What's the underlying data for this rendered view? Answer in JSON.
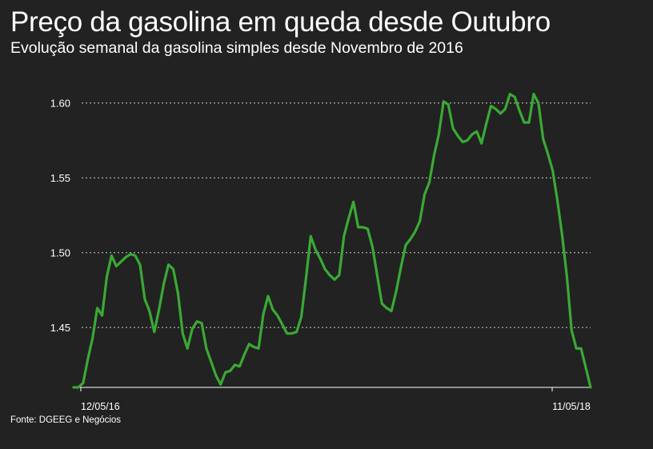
{
  "header": {
    "title": "Preço da gasolina em queda desde Outubro",
    "subtitle": "Evolução semanal da gasolina simples desde Novembro de 2016"
  },
  "footer": {
    "source": "Fonte: DGEEG e Negócios"
  },
  "colors": {
    "background": "#222222",
    "line": "#3aa935",
    "text": "#ffffff",
    "grid": "#bbbbbb"
  },
  "chart_data": {
    "type": "line",
    "title": "Preço da gasolina em queda desde Outubro",
    "subtitle": "Evolução semanal da gasolina simples desde Novembro de 2016",
    "xlabel": "",
    "ylabel": "",
    "ylim": [
      1.41,
      1.61
    ],
    "yticks": [
      1.45,
      1.5,
      1.55,
      1.6
    ],
    "ytick_labels": [
      "1.45",
      "1.50",
      "1.55",
      "1.60"
    ],
    "xtick_labels": [
      "12/05/16",
      "11/05/18"
    ],
    "grid": "horizontal dotted",
    "legend": "none",
    "series": [
      {
        "values": [
          1.41,
          1.41,
          1.413,
          1.429,
          1.443,
          1.463,
          1.458,
          1.484,
          1.498,
          1.491,
          1.494,
          1.497,
          1.499,
          1.498,
          1.492,
          1.469,
          1.461,
          1.447,
          1.462,
          1.479,
          1.492,
          1.489,
          1.473,
          1.446,
          1.436,
          1.449,
          1.454,
          1.453,
          1.436,
          1.427,
          1.418,
          1.412,
          1.42,
          1.421,
          1.425,
          1.424,
          1.432,
          1.439,
          1.437,
          1.436,
          1.459,
          1.471,
          1.462,
          1.458,
          1.452,
          1.446,
          1.446,
          1.447,
          1.457,
          1.483,
          1.511,
          1.502,
          1.496,
          1.489,
          1.485,
          1.482,
          1.485,
          1.511,
          1.523,
          1.534,
          1.517,
          1.517,
          1.516,
          1.504,
          1.485,
          1.466,
          1.463,
          1.461,
          1.474,
          1.49,
          1.505,
          1.509,
          1.514,
          1.521,
          1.539,
          1.547,
          1.565,
          1.579,
          1.601,
          1.599,
          1.583,
          1.578,
          1.574,
          1.575,
          1.579,
          1.581,
          1.573,
          1.586,
          1.598,
          1.596,
          1.593,
          1.596,
          1.606,
          1.604,
          1.595,
          1.587,
          1.587,
          1.606,
          1.6,
          1.576,
          1.566,
          1.555,
          1.535,
          1.512,
          1.484,
          1.448,
          1.436,
          1.436,
          1.423,
          1.41
        ]
      }
    ]
  }
}
